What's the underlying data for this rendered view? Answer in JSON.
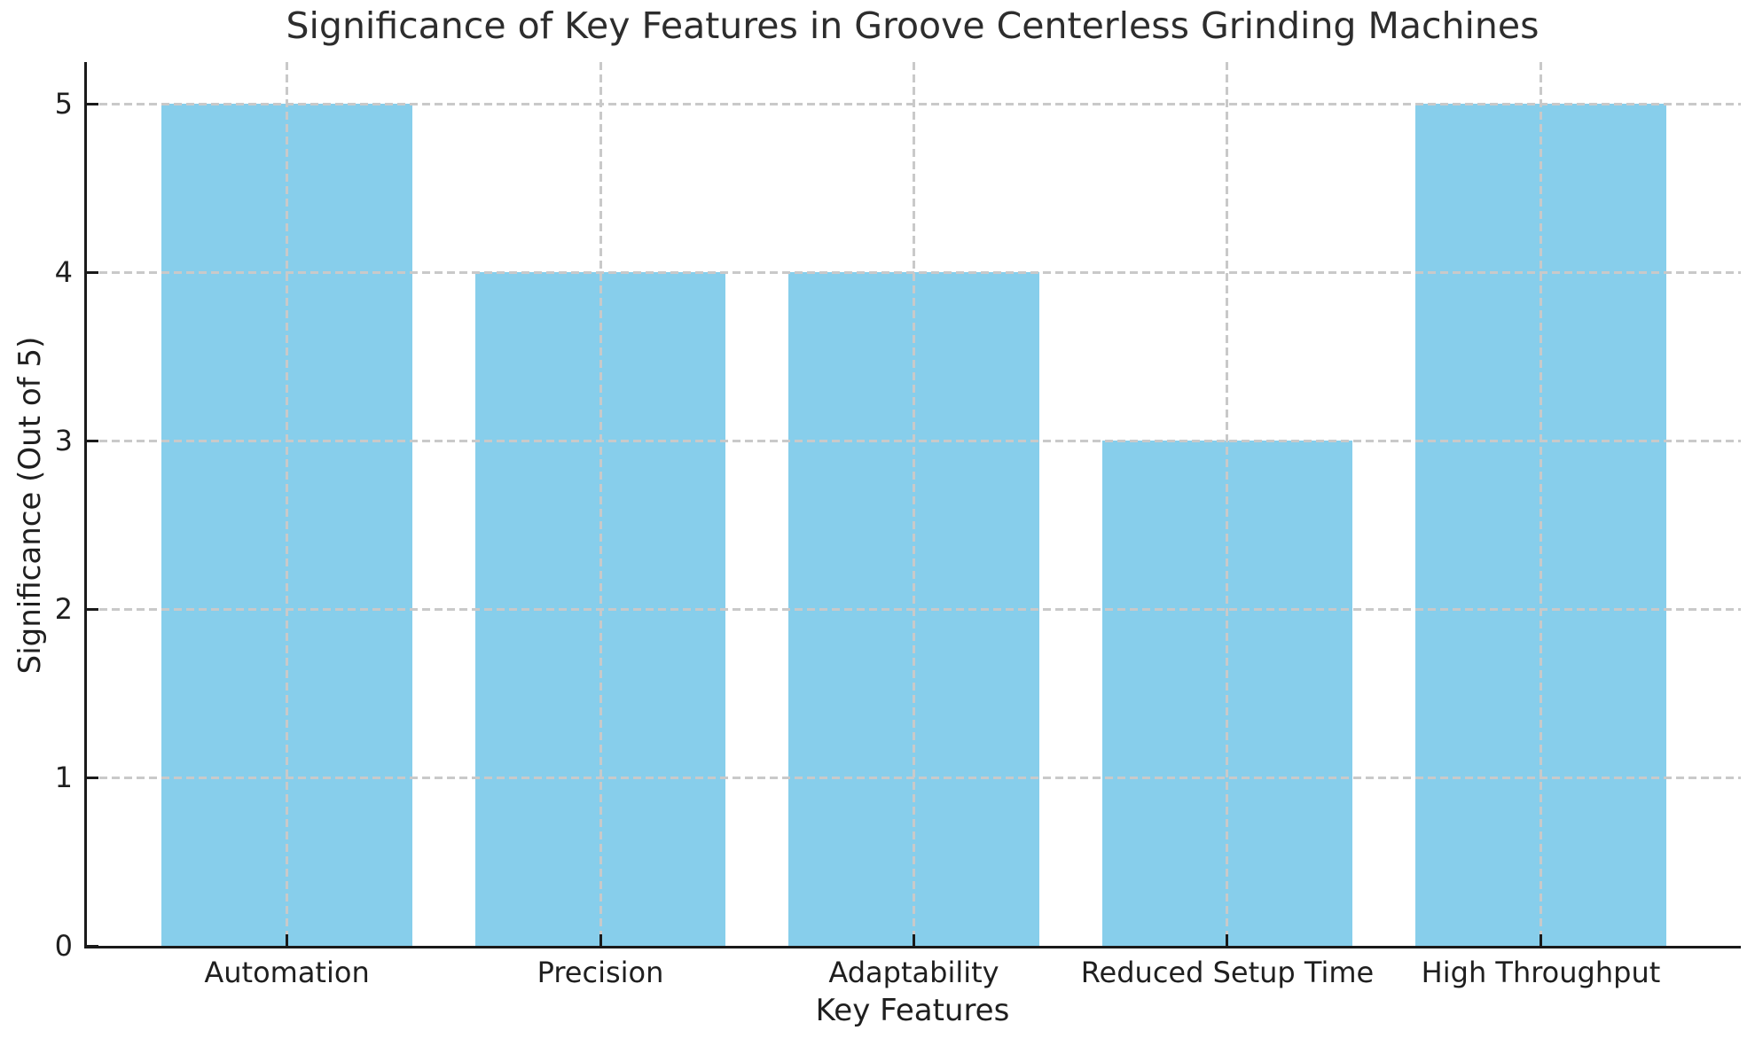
{
  "chart_data": {
    "type": "bar",
    "title": "Significance of Key Features in Groove Centerless Grinding Machines",
    "xlabel": "Key Features",
    "ylabel": "Significance (Out of 5)",
    "categories": [
      "Automation",
      "Precision",
      "Adaptability",
      "Reduced Setup Time",
      "High Throughput"
    ],
    "values": [
      5,
      4,
      4,
      3,
      5
    ],
    "ylim": [
      0,
      5.25
    ],
    "yticks": [
      0,
      1,
      2,
      3,
      4,
      5
    ],
    "bar_width_fraction": 0.8,
    "grid": "dashed gridlines on both axes, drawn above bars",
    "legend": "none",
    "colors": {
      "bar": "#87CEEB",
      "grid": "#c9c9c9",
      "axis": "#1a1a1a",
      "text": "#1f1f1f",
      "background": "#ffffff"
    }
  }
}
